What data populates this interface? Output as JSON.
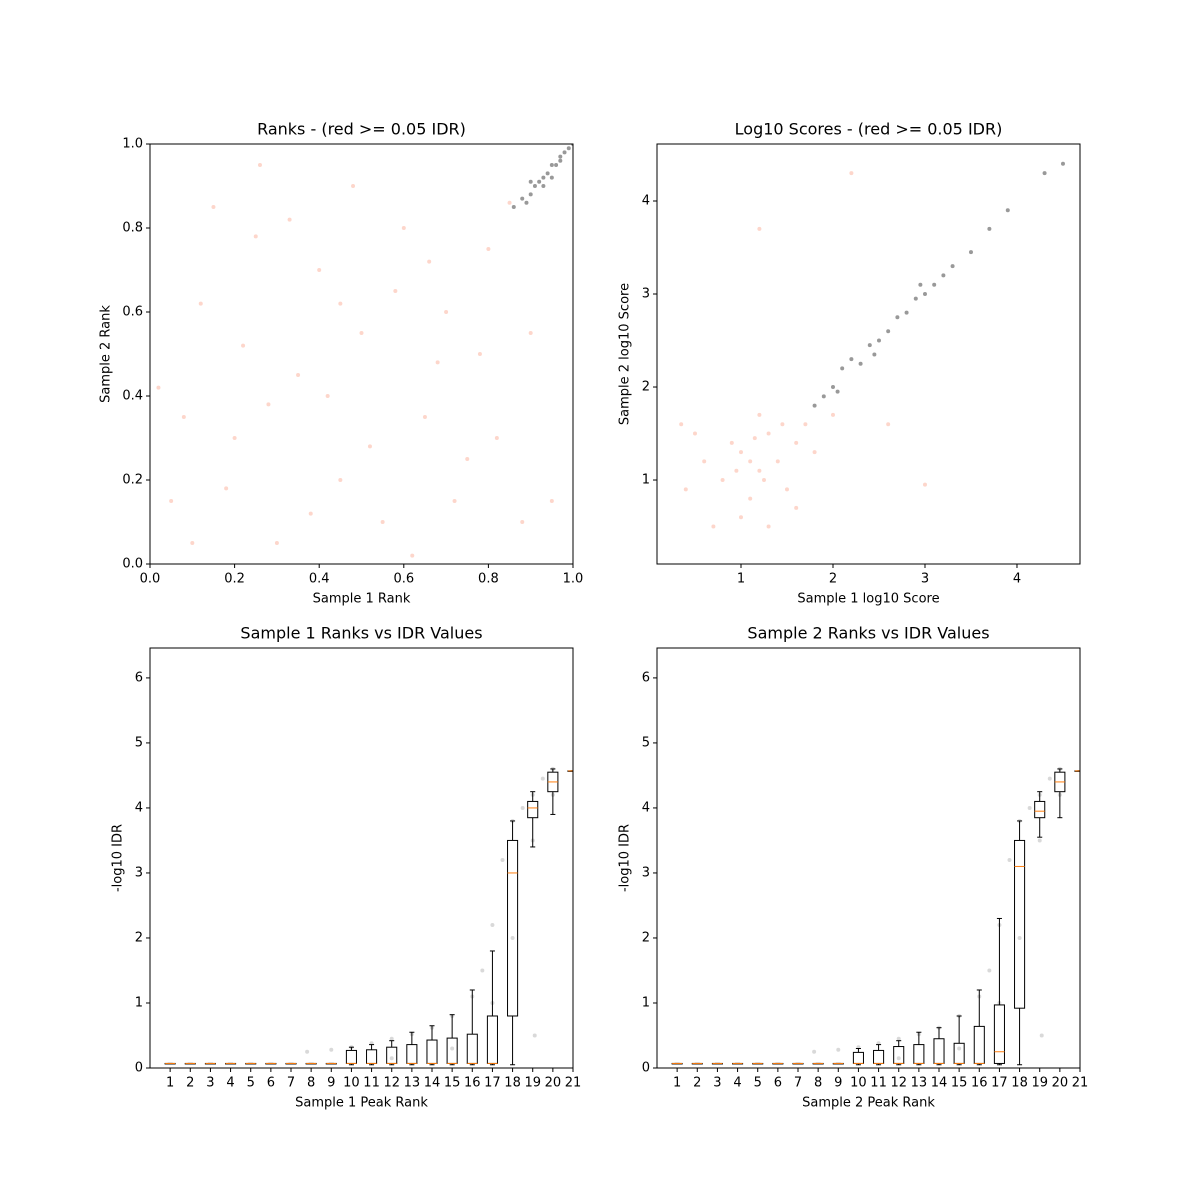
{
  "chart_data": [
    {
      "type": "scatter",
      "title": "Ranks - (red >= 0.05 IDR)",
      "xlabel": "Sample 1 Rank",
      "ylabel": "Sample 2 Rank",
      "xlim": [
        0,
        1
      ],
      "ylim": [
        0,
        1
      ],
      "xticks": [
        {
          "value": 0,
          "label": "0.0"
        },
        {
          "value": 0.2,
          "label": "0.2"
        },
        {
          "value": 0.4,
          "label": "0.4"
        },
        {
          "value": 0.6,
          "label": "0.6"
        },
        {
          "value": 0.8,
          "label": "0.8"
        },
        {
          "value": 1,
          "label": "1.0"
        }
      ],
      "yticks": [
        {
          "value": 0,
          "label": "0.0"
        },
        {
          "value": 0.2,
          "label": "0.2"
        },
        {
          "value": 0.4,
          "label": "0.4"
        },
        {
          "value": 0.6,
          "label": "0.6"
        },
        {
          "value": 0.8,
          "label": "0.8"
        },
        {
          "value": 1,
          "label": "1.0"
        }
      ],
      "series": [
        {
          "color": "#fa8a6a",
          "alpha": 0.35,
          "x": [
            0.05,
            0.12,
            0.2,
            0.25,
            0.3,
            0.35,
            0.4,
            0.45,
            0.5,
            0.55,
            0.6,
            0.65,
            0.7,
            0.75,
            0.8,
            0.85,
            0.02,
            0.1,
            0.15,
            0.22,
            0.28,
            0.33,
            0.38,
            0.42,
            0.48,
            0.52,
            0.58,
            0.62,
            0.68,
            0.72,
            0.78,
            0.82,
            0.88,
            0.95,
            0.08,
            0.18,
            0.45,
            0.66,
            0.26,
            0.9
          ],
          "values": [
            0.15,
            0.62,
            0.3,
            0.78,
            0.05,
            0.45,
            0.7,
            0.2,
            0.55,
            0.1,
            0.8,
            0.35,
            0.6,
            0.25,
            0.75,
            0.86,
            0.42,
            0.05,
            0.85,
            0.52,
            0.38,
            0.82,
            0.12,
            0.4,
            0.9,
            0.28,
            0.65,
            0.02,
            0.48,
            0.15,
            0.5,
            0.3,
            0.1,
            0.15,
            0.35,
            0.18,
            0.62,
            0.72,
            0.95,
            0.55
          ]
        },
        {
          "color": "#000000",
          "alpha": 0.4,
          "x": [
            0.86,
            0.88,
            0.9,
            0.91,
            0.92,
            0.93,
            0.94,
            0.95,
            0.96,
            0.97,
            0.98,
            0.99,
            1.0,
            0.89,
            0.93,
            0.95,
            0.97,
            0.9
          ],
          "values": [
            0.85,
            0.87,
            0.88,
            0.9,
            0.91,
            0.92,
            0.93,
            0.95,
            0.95,
            0.96,
            0.98,
            0.99,
            1.0,
            0.86,
            0.9,
            0.92,
            0.97,
            0.91
          ]
        }
      ]
    },
    {
      "type": "scatter",
      "title": "Log10 Scores - (red >= 0.05 IDR)",
      "xlabel": "Sample 1 log10 Score",
      "ylabel": "Sample 2 log10 Score",
      "xlim": [
        0.087,
        4.685
      ],
      "ylim": [
        0.097,
        4.613
      ],
      "xticks": [
        1,
        2,
        3,
        4
      ],
      "yticks": [
        1,
        2,
        3,
        4
      ],
      "series": [
        {
          "color": "#fa8a6a",
          "alpha": 0.35,
          "x": [
            0.8,
            1.0,
            1.2,
            1.3,
            1.1,
            0.9,
            1.4,
            1.5,
            1.6,
            0.6,
            1.0,
            1.2,
            1.7,
            0.5,
            1.3,
            1.8,
            1.1,
            1.25,
            0.95,
            1.45,
            0.4,
            2.0,
            1.6,
            0.7,
            1.15,
            2.6,
            3.0,
            1.2,
            2.2,
            0.35
          ],
          "values": [
            1.0,
            1.3,
            1.1,
            1.5,
            0.8,
            1.4,
            1.2,
            0.9,
            1.4,
            1.2,
            0.6,
            1.7,
            1.6,
            1.5,
            0.5,
            1.3,
            1.2,
            1.0,
            1.1,
            1.6,
            0.9,
            1.7,
            0.7,
            0.5,
            1.45,
            1.6,
            0.95,
            3.7,
            4.3,
            1.6
          ]
        },
        {
          "color": "#000000",
          "alpha": 0.4,
          "x": [
            1.8,
            1.9,
            2.0,
            2.1,
            2.2,
            2.3,
            2.4,
            2.5,
            2.6,
            2.7,
            2.8,
            2.9,
            3.0,
            3.1,
            3.2,
            3.3,
            3.5,
            3.7,
            3.9,
            4.3,
            4.5,
            2.05,
            2.45,
            2.95
          ],
          "values": [
            1.8,
            1.9,
            2.0,
            2.2,
            2.3,
            2.25,
            2.45,
            2.5,
            2.6,
            2.75,
            2.8,
            2.95,
            3.0,
            3.1,
            3.2,
            3.3,
            3.45,
            3.7,
            3.9,
            4.3,
            4.4,
            1.95,
            2.35,
            3.1
          ]
        }
      ]
    },
    {
      "type": "box",
      "title": "Sample 1 Ranks vs IDR Values",
      "xlabel": "Sample 1 Peak Rank",
      "ylabel": "-log10 IDR",
      "xlim": [
        0,
        21
      ],
      "ylim": [
        0,
        6.46
      ],
      "xticks": [
        1,
        2,
        3,
        4,
        5,
        6,
        7,
        8,
        9,
        10,
        11,
        12,
        13,
        14,
        15,
        16,
        17,
        18,
        19,
        20,
        21
      ],
      "yticks": [
        0,
        1,
        2,
        3,
        4,
        5,
        6
      ],
      "points": {
        "color": "#000000",
        "alpha": 0.15,
        "x": [
          7.8,
          9,
          10,
          11,
          12,
          13,
          14,
          15,
          16,
          16.5,
          17,
          17.5,
          18,
          18.5,
          19,
          19.5,
          20,
          12,
          15,
          17,
          18,
          19,
          20,
          19.1
        ],
        "values": [
          0.25,
          0.28,
          0.32,
          0.38,
          0.45,
          0.52,
          0.62,
          0.8,
          1.1,
          1.5,
          2.2,
          3.2,
          3.8,
          4.0,
          4.2,
          4.45,
          4.6,
          0.15,
          0.3,
          1.0,
          2.0,
          3.5,
          4.2,
          0.5
        ]
      },
      "x": [
        1,
        2,
        3,
        4,
        5,
        6,
        7,
        8,
        9,
        10,
        11,
        12,
        13,
        14,
        15,
        16,
        17,
        18,
        19,
        20,
        21
      ],
      "whislo": [
        0.07,
        0.07,
        0.07,
        0.07,
        0.07,
        0.07,
        0.07,
        0.07,
        0.07,
        0.05,
        0.05,
        0.05,
        0.05,
        0.05,
        0.05,
        0.05,
        0.05,
        0.05,
        3.4,
        3.9,
        4.57
      ],
      "q1": [
        0.07,
        0.07,
        0.07,
        0.07,
        0.07,
        0.07,
        0.07,
        0.07,
        0.07,
        0.07,
        0.07,
        0.07,
        0.07,
        0.07,
        0.07,
        0.07,
        0.07,
        0.8,
        3.85,
        4.25,
        4.57
      ],
      "med": [
        0.07,
        0.07,
        0.07,
        0.07,
        0.07,
        0.07,
        0.07,
        0.07,
        0.07,
        0.07,
        0.07,
        0.07,
        0.07,
        0.07,
        0.07,
        0.07,
        0.07,
        3.0,
        4.0,
        4.4,
        4.57
      ],
      "q3": [
        0.07,
        0.07,
        0.07,
        0.07,
        0.07,
        0.07,
        0.07,
        0.07,
        0.07,
        0.27,
        0.28,
        0.32,
        0.36,
        0.43,
        0.46,
        0.52,
        0.8,
        3.5,
        4.1,
        4.55,
        4.57
      ],
      "whishi": [
        0.07,
        0.07,
        0.07,
        0.07,
        0.07,
        0.07,
        0.07,
        0.07,
        0.07,
        0.32,
        0.36,
        0.42,
        0.55,
        0.65,
        0.82,
        1.2,
        1.8,
        3.8,
        4.25,
        4.6,
        4.57
      ]
    },
    {
      "type": "box",
      "title": "Sample 2 Ranks vs IDR Values",
      "xlabel": "Sample 2 Peak Rank",
      "ylabel": "-log10 IDR",
      "xlim": [
        0,
        21
      ],
      "ylim": [
        0,
        6.46
      ],
      "xticks": [
        1,
        2,
        3,
        4,
        5,
        6,
        7,
        8,
        9,
        10,
        11,
        12,
        13,
        14,
        15,
        16,
        17,
        18,
        19,
        20,
        21
      ],
      "yticks": [
        0,
        1,
        2,
        3,
        4,
        5,
        6
      ],
      "points": {
        "color": "#000000",
        "alpha": 0.15,
        "x": [
          7.8,
          9,
          10,
          11,
          12,
          13,
          14,
          15,
          16,
          16.5,
          17,
          17.5,
          18,
          18.5,
          19,
          19.5,
          20,
          12,
          15,
          17,
          18,
          19,
          20,
          19.1
        ],
        "values": [
          0.25,
          0.28,
          0.32,
          0.38,
          0.45,
          0.52,
          0.62,
          0.8,
          1.1,
          1.5,
          2.2,
          3.2,
          3.8,
          4.0,
          4.2,
          4.45,
          4.6,
          0.15,
          0.3,
          1.0,
          2.0,
          3.5,
          4.2,
          0.5
        ]
      },
      "x": [
        1,
        2,
        3,
        4,
        5,
        6,
        7,
        8,
        9,
        10,
        11,
        12,
        13,
        14,
        15,
        16,
        17,
        18,
        19,
        20,
        21
      ],
      "whislo": [
        0.07,
        0.07,
        0.07,
        0.07,
        0.07,
        0.07,
        0.07,
        0.07,
        0.07,
        0.05,
        0.05,
        0.05,
        0.05,
        0.05,
        0.05,
        0.05,
        0.05,
        0.05,
        3.55,
        3.85,
        4.57
      ],
      "q1": [
        0.07,
        0.07,
        0.07,
        0.07,
        0.07,
        0.07,
        0.07,
        0.07,
        0.07,
        0.07,
        0.07,
        0.07,
        0.07,
        0.07,
        0.07,
        0.07,
        0.07,
        0.92,
        3.85,
        4.25,
        4.57
      ],
      "med": [
        0.07,
        0.07,
        0.07,
        0.07,
        0.07,
        0.07,
        0.07,
        0.07,
        0.07,
        0.07,
        0.07,
        0.07,
        0.07,
        0.07,
        0.07,
        0.07,
        0.25,
        3.1,
        3.95,
        4.4,
        4.57
      ],
      "q3": [
        0.07,
        0.07,
        0.07,
        0.07,
        0.07,
        0.07,
        0.07,
        0.07,
        0.07,
        0.24,
        0.27,
        0.33,
        0.36,
        0.45,
        0.38,
        0.64,
        0.97,
        3.5,
        4.1,
        4.55,
        4.57
      ],
      "whishi": [
        0.07,
        0.07,
        0.07,
        0.07,
        0.07,
        0.07,
        0.07,
        0.07,
        0.07,
        0.3,
        0.36,
        0.42,
        0.55,
        0.62,
        0.8,
        1.2,
        2.3,
        3.8,
        4.25,
        4.6,
        4.57
      ]
    }
  ]
}
